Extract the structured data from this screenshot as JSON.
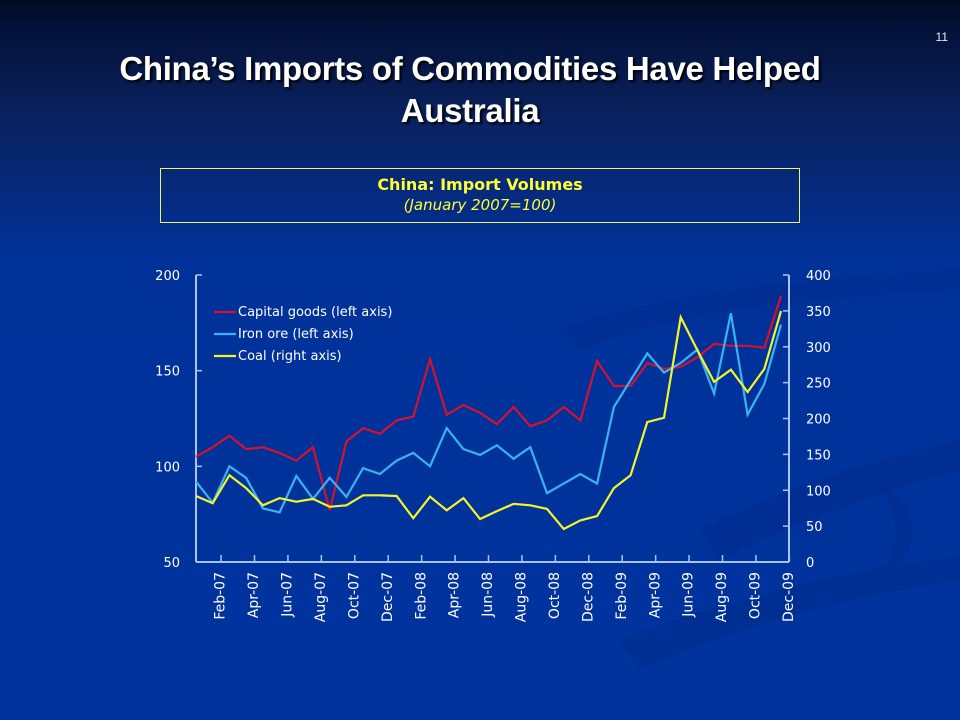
{
  "slide": {
    "page_number": "11",
    "title_line1": "China’s Imports of Commodities Have Helped",
    "title_line2": "Australia"
  },
  "chart_box": {
    "title": "China: Import Volumes",
    "subtitle": "(January 2007=100)"
  },
  "colors": {
    "capital_goods": "#d8102c",
    "iron_ore": "#3ab4f0",
    "coal": "#f4f42a",
    "axis": "#a9c4f0",
    "title_box_border": "#f4f46a",
    "title_box_text": "#ffff33"
  },
  "chart_data": {
    "type": "line",
    "title": "China: Import Volumes",
    "subtitle": "(January 2007=100)",
    "xlabel": "",
    "ylabel_left": "",
    "ylabel_right": "",
    "ylim_left": [
      50,
      200
    ],
    "ylim_right": [
      0,
      400
    ],
    "yticks_left": [
      50,
      100,
      150,
      200
    ],
    "yticks_right": [
      0,
      50,
      100,
      150,
      200,
      250,
      300,
      350,
      400
    ],
    "grid": false,
    "legend_position": "upper-left inside plot",
    "x": [
      "Jan-07",
      "Feb-07",
      "Mar-07",
      "Apr-07",
      "May-07",
      "Jun-07",
      "Jul-07",
      "Aug-07",
      "Sep-07",
      "Oct-07",
      "Nov-07",
      "Dec-07",
      "Jan-08",
      "Feb-08",
      "Mar-08",
      "Apr-08",
      "May-08",
      "Jun-08",
      "Jul-08",
      "Aug-08",
      "Sep-08",
      "Oct-08",
      "Nov-08",
      "Dec-08",
      "Jan-09",
      "Feb-09",
      "Mar-09",
      "Apr-09",
      "May-09",
      "Jun-09",
      "Jul-09",
      "Aug-09",
      "Sep-09",
      "Oct-09",
      "Nov-09",
      "Dec-09"
    ],
    "xtick_labels": [
      "Feb-07",
      "Apr-07",
      "Jun-07",
      "Aug-07",
      "Oct-07",
      "Dec-07",
      "Feb-08",
      "Apr-08",
      "Jun-08",
      "Aug-08",
      "Oct-08",
      "Dec-08",
      "Feb-09",
      "Apr-09",
      "Jun-09",
      "Aug-09",
      "Oct-09",
      "Dec-09"
    ],
    "series": [
      {
        "name": "Capital goods (left axis)",
        "axis": "left",
        "color": "#d8102c",
        "values": [
          105,
          110,
          116,
          109,
          110,
          107,
          103,
          110,
          77,
          113,
          120,
          117,
          124,
          126,
          156,
          127,
          132,
          128,
          122,
          131,
          121,
          124,
          131,
          124,
          155,
          142,
          142,
          154,
          151,
          152,
          157,
          164,
          163,
          163,
          162,
          189
        ]
      },
      {
        "name": "Iron ore (left axis)",
        "axis": "left",
        "color": "#3ab4f0",
        "values": [
          92,
          81,
          100,
          94,
          78,
          76,
          95,
          83,
          94,
          84,
          99,
          96,
          103,
          107,
          100,
          120,
          109,
          106,
          111,
          104,
          110,
          86,
          91,
          96,
          91,
          131,
          145,
          159,
          149,
          154,
          161,
          138,
          180,
          127,
          143,
          174
        ]
      },
      {
        "name": "Coal (right axis)",
        "axis": "right",
        "color": "#f4f42a",
        "values": [
          92,
          82,
          121,
          103,
          79,
          89,
          84,
          88,
          77,
          79,
          93,
          93,
          92,
          61,
          91,
          72,
          89,
          60,
          71,
          81,
          79,
          74,
          46,
          58,
          64,
          103,
          121,
          195,
          201,
          341,
          295,
          251,
          268,
          237,
          269,
          350
        ]
      }
    ]
  }
}
